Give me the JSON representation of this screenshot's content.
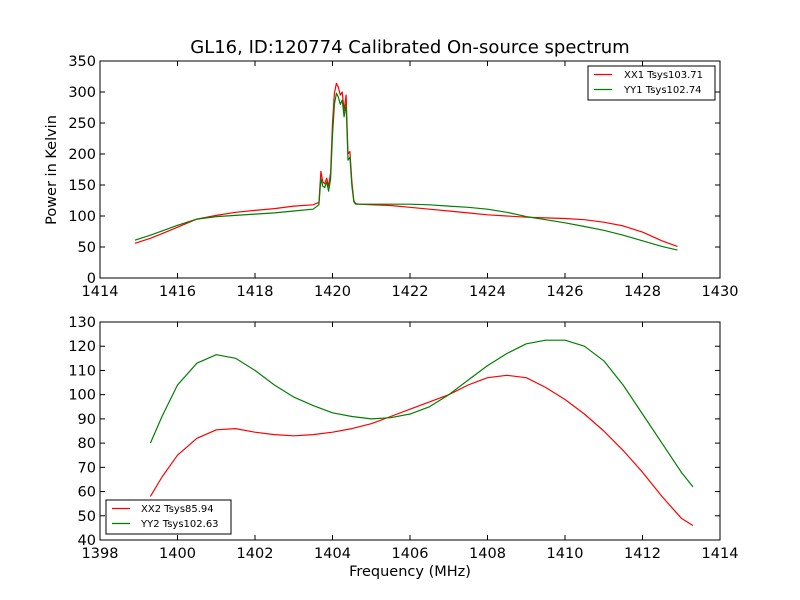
{
  "chart_data": [
    {
      "type": "line",
      "title": "GL16, ID:120774 Calibrated On-source spectrum",
      "xlabel": "",
      "ylabel": "Power in Kelvin",
      "xlim": [
        1414,
        1430
      ],
      "ylim": [
        0,
        350
      ],
      "xticks": [
        "1414",
        "1416",
        "1418",
        "1420",
        "1422",
        "1424",
        "1426",
        "1428",
        "1430"
      ],
      "yticks": [
        "0",
        "50",
        "100",
        "150",
        "200",
        "250",
        "300",
        "350"
      ],
      "grid": false,
      "legend_position": "top-right",
      "series": [
        {
          "name": "XX1 Tsys103.71",
          "color": "#ff0000",
          "x": [
            1414.9,
            1415.3,
            1415.7,
            1416.0,
            1416.5,
            1417.0,
            1417.5,
            1418.0,
            1418.5,
            1419.0,
            1419.5,
            1419.65,
            1419.7,
            1419.75,
            1419.8,
            1419.85,
            1419.9,
            1419.95,
            1420.0,
            1420.05,
            1420.1,
            1420.15,
            1420.2,
            1420.25,
            1420.3,
            1420.35,
            1420.4,
            1420.45,
            1420.5,
            1420.55,
            1420.6,
            1420.7,
            1421.0,
            1421.5,
            1422.0,
            1422.5,
            1423.0,
            1423.5,
            1424.0,
            1424.5,
            1425.0,
            1425.5,
            1426.0,
            1426.5,
            1427.0,
            1427.5,
            1428.0,
            1428.5,
            1428.9
          ],
          "y": [
            56,
            64,
            74,
            82,
            95,
            101,
            106,
            109,
            112,
            116,
            118,
            122,
            172,
            155,
            152,
            161,
            148,
            170,
            250,
            298,
            314,
            308,
            295,
            300,
            270,
            295,
            200,
            204,
            155,
            125,
            120,
            119,
            118,
            117,
            114,
            111,
            108,
            105,
            102,
            100,
            98,
            97,
            96,
            94,
            90,
            84,
            74,
            60,
            51
          ]
        },
        {
          "name": "YY1 Tsys102.74",
          "color": "#008000",
          "x": [
            1414.9,
            1415.3,
            1415.7,
            1416.0,
            1416.5,
            1417.0,
            1417.5,
            1418.0,
            1418.5,
            1419.0,
            1419.5,
            1419.65,
            1419.7,
            1419.75,
            1419.8,
            1419.85,
            1419.9,
            1419.95,
            1420.0,
            1420.05,
            1420.1,
            1420.15,
            1420.2,
            1420.25,
            1420.3,
            1420.35,
            1420.4,
            1420.45,
            1420.5,
            1420.55,
            1420.6,
            1420.7,
            1421.0,
            1421.5,
            1422.0,
            1422.5,
            1423.0,
            1423.5,
            1424.0,
            1424.5,
            1425.0,
            1425.5,
            1426.0,
            1426.5,
            1427.0,
            1427.5,
            1428.0,
            1428.5,
            1428.9
          ],
          "y": [
            61,
            69,
            78,
            85,
            95,
            99,
            101,
            103,
            105,
            108,
            111,
            118,
            160,
            148,
            146,
            155,
            140,
            160,
            230,
            280,
            298,
            292,
            280,
            287,
            260,
            280,
            190,
            195,
            148,
            123,
            119,
            119,
            119,
            119,
            119,
            118,
            116,
            114,
            111,
            106,
            99,
            94,
            89,
            83,
            77,
            69,
            60,
            51,
            45
          ]
        }
      ]
    },
    {
      "type": "line",
      "title": "",
      "xlabel": "Frequency (MHz)",
      "ylabel": "",
      "xlim": [
        1398,
        1414
      ],
      "ylim": [
        40,
        130
      ],
      "xticks": [
        "1398",
        "1400",
        "1402",
        "1404",
        "1406",
        "1408",
        "1410",
        "1412",
        "1414"
      ],
      "yticks": [
        "40",
        "50",
        "60",
        "70",
        "80",
        "90",
        "100",
        "110",
        "120",
        "130"
      ],
      "grid": false,
      "legend_position": "bottom-left",
      "series": [
        {
          "name": "XX2 Tsys85.94",
          "color": "#ff0000",
          "x": [
            1399.3,
            1399.6,
            1400.0,
            1400.5,
            1401.0,
            1401.5,
            1402.0,
            1402.5,
            1403.0,
            1403.5,
            1404.0,
            1404.5,
            1405.0,
            1405.5,
            1406.0,
            1406.5,
            1407.0,
            1407.5,
            1408.0,
            1408.5,
            1409.0,
            1409.5,
            1410.0,
            1410.5,
            1411.0,
            1411.5,
            1412.0,
            1412.5,
            1413.0,
            1413.3
          ],
          "y": [
            58,
            66,
            75,
            82,
            85.5,
            86,
            84.5,
            83.5,
            83,
            83.5,
            84.5,
            86,
            88,
            91,
            94,
            97,
            100,
            104,
            107,
            108,
            107,
            103,
            98,
            92,
            85,
            77,
            68,
            58,
            49,
            46
          ]
        },
        {
          "name": "YY2 Tsys102.63",
          "color": "#008000",
          "x": [
            1399.3,
            1399.6,
            1400.0,
            1400.5,
            1401.0,
            1401.5,
            1402.0,
            1402.5,
            1403.0,
            1403.5,
            1404.0,
            1404.5,
            1405.0,
            1405.5,
            1406.0,
            1406.5,
            1407.0,
            1407.5,
            1408.0,
            1408.5,
            1409.0,
            1409.5,
            1410.0,
            1410.5,
            1411.0,
            1411.5,
            1412.0,
            1412.5,
            1413.0,
            1413.3
          ],
          "y": [
            80,
            91,
            104,
            113,
            116.5,
            115,
            110,
            104,
            99,
            95.5,
            92.5,
            91,
            90,
            90.5,
            92,
            95,
            100,
            106,
            112,
            117,
            121,
            122.5,
            122.5,
            120,
            114,
            104,
            92,
            80,
            68,
            62
          ]
        }
      ]
    }
  ]
}
